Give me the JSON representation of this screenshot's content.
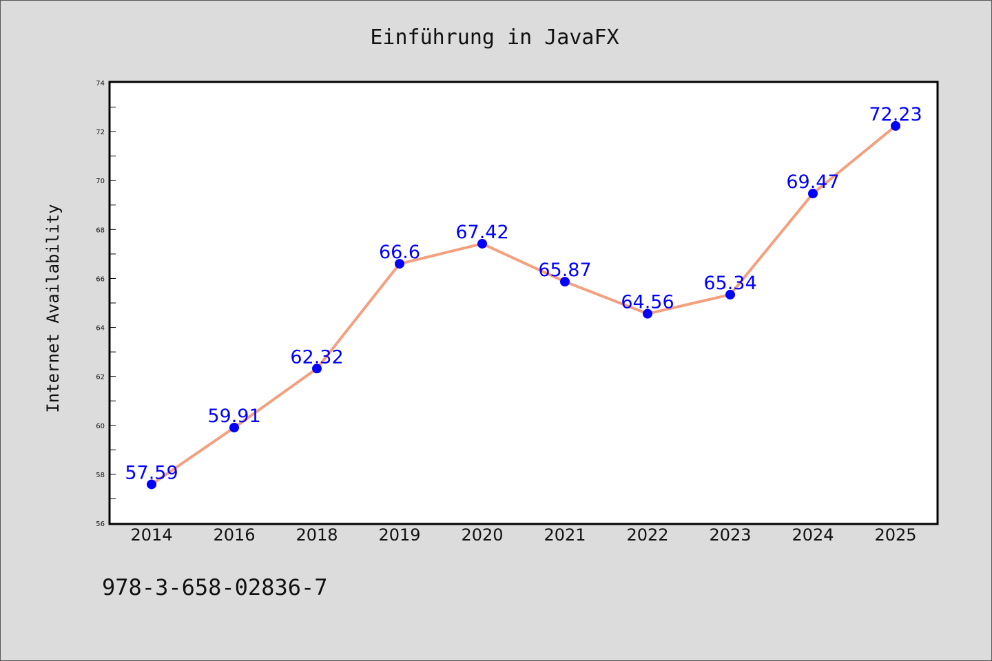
{
  "chart_data": {
    "type": "line",
    "title": "Einführung in JavaFX",
    "ylabel": "Internet Availability",
    "xlabel": "",
    "categories": [
      "2014",
      "2016",
      "2018",
      "2019",
      "2020",
      "2021",
      "2022",
      "2023",
      "2024",
      "2025"
    ],
    "series": [
      {
        "values": [
          57.59,
          59.91,
          62.32,
          66.6,
          67.42,
          65.87,
          64.56,
          65.34,
          69.47,
          72.23
        ],
        "labels": [
          "57.59",
          "59.91",
          "62.32",
          "66.6",
          "67.42",
          "65.87",
          "64.56",
          "65.34",
          "69.47",
          "72.23"
        ],
        "line_color": "#f4a07e",
        "marker_color": "#0000ff"
      }
    ],
    "ylim": [
      56,
      74
    ],
    "yticks": [
      56,
      58,
      60,
      62,
      64,
      66,
      68,
      70,
      72,
      74
    ],
    "grid": false,
    "legend": "none"
  },
  "footer": {
    "isbn": "978-3-658-02836-7"
  }
}
